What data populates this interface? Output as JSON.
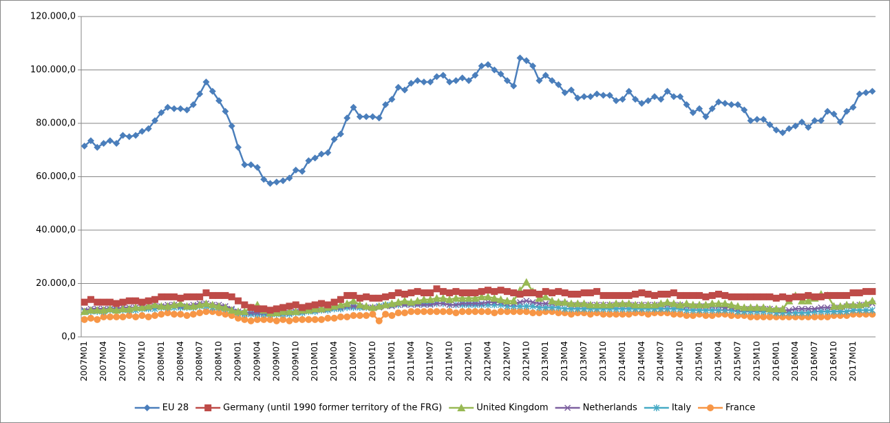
{
  "chart_data": {
    "type": "line",
    "categories": [
      "2007M01",
      null,
      null,
      "2007M04",
      null,
      null,
      "2007M07",
      null,
      null,
      "2007M10",
      null,
      null,
      "2008M01",
      null,
      null,
      "2008M04",
      null,
      null,
      "2008M07",
      null,
      null,
      "2008M10",
      null,
      null,
      "2009M01",
      null,
      null,
      "2009M04",
      null,
      null,
      "2009M07",
      null,
      null,
      "2009M10",
      null,
      null,
      "2010M01",
      null,
      null,
      "2010M04",
      null,
      null,
      "2010M07",
      null,
      null,
      "2010M10",
      null,
      null,
      "2011M01",
      null,
      null,
      "2011M04",
      null,
      null,
      "2011M07",
      null,
      null,
      "2011M10",
      null,
      null,
      "2012M01",
      null,
      null,
      "2012M04",
      null,
      null,
      "2012M07",
      null,
      null,
      "2012M10",
      null,
      null,
      "2013M01",
      null,
      null,
      "2013M04",
      null,
      null,
      "2013M07",
      null,
      null,
      "2013M10",
      null,
      null,
      "2014M01",
      null,
      null,
      "2014M04",
      null,
      null,
      "2014M07",
      null,
      null,
      "2014M10",
      null,
      null,
      "2015M01",
      null,
      null,
      "2015M04",
      null,
      null,
      "2015M07",
      null,
      null,
      "2015M10",
      null,
      null,
      "2016M01",
      null,
      null,
      "2016M04",
      null,
      null,
      "2016M07",
      null,
      null,
      "2016M10",
      null,
      null,
      "2017M01",
      null,
      null,
      null
    ],
    "ylim": [
      0,
      120000
    ],
    "yticks": [
      {
        "value": 0,
        "label": "0,0"
      },
      {
        "value": 20000,
        "label": "20.000,0"
      },
      {
        "value": 40000,
        "label": "40.000,0"
      },
      {
        "value": 60000,
        "label": "60.000,0"
      },
      {
        "value": 80000,
        "label": "80.000,0"
      },
      {
        "value": 100000,
        "label": "100.000,0"
      },
      {
        "value": 120000,
        "label": "120.000,0"
      }
    ],
    "grid": true,
    "legend": "bottom",
    "series": [
      {
        "name": "EU 28",
        "color": "#4a7ebb",
        "marker": "diamond",
        "values": [
          71500,
          73500,
          71000,
          72500,
          73500,
          72500,
          75500,
          75000,
          75500,
          77000,
          78000,
          81000,
          84000,
          86000,
          85500,
          85500,
          85000,
          87000,
          91000,
          95500,
          92000,
          88500,
          84500,
          79000,
          71000,
          64500,
          64500,
          63500,
          59000,
          57500,
          58000,
          58500,
          59500,
          62500,
          62000,
          66000,
          67000,
          68500,
          69000,
          74000,
          76000,
          82000,
          86000,
          82500,
          82500,
          82500,
          82000,
          87000,
          89000,
          93500,
          92500,
          95000,
          96000,
          95500,
          95500,
          97500,
          98000,
          95500,
          96000,
          97000,
          96000,
          98000,
          101500,
          102000,
          100000,
          98500,
          96000,
          94000,
          104500,
          103500,
          101500,
          96000,
          98000,
          96000,
          94500,
          91500,
          92500,
          89500,
          90000,
          90000,
          91000,
          90500,
          90500,
          88500,
          89000,
          92000,
          89000,
          87500,
          88500,
          90000,
          89000,
          92000,
          90000,
          90000,
          87000,
          84000,
          85500,
          82500,
          85500,
          88000,
          87500,
          87000,
          87000,
          85000,
          81000,
          81500,
          81500,
          79500,
          77500,
          76500,
          78000,
          79000,
          80500,
          78500,
          81000,
          81000,
          84500,
          83500,
          80500,
          84500,
          86000,
          91000,
          91500,
          92000
        ]
      },
      {
        "name": "Germany (until 1990 former territory of the FRG)",
        "color": "#be4b48",
        "marker": "square",
        "values": [
          13000,
          14000,
          13000,
          13000,
          13000,
          12500,
          13000,
          13500,
          13500,
          13000,
          13500,
          14000,
          15000,
          15000,
          15000,
          14500,
          15000,
          15000,
          15000,
          16500,
          15500,
          15500,
          15500,
          15000,
          13500,
          12000,
          11000,
          10500,
          10500,
          10000,
          10500,
          11000,
          11500,
          12000,
          11000,
          11500,
          12000,
          12500,
          12000,
          13000,
          14000,
          15500,
          15500,
          14500,
          15000,
          14500,
          14500,
          15000,
          15500,
          16500,
          16000,
          16500,
          17000,
          16500,
          16500,
          18000,
          17000,
          16500,
          17000,
          16500,
          16500,
          16500,
          17000,
          17500,
          17000,
          17500,
          17000,
          16500,
          16000,
          16500,
          16500,
          16000,
          17000,
          16500,
          17000,
          16500,
          16000,
          16000,
          16500,
          16500,
          17000,
          15500,
          15500,
          15500,
          15500,
          15500,
          16000,
          16500,
          16000,
          15500,
          16000,
          16000,
          16500,
          15500,
          15500,
          15500,
          15500,
          15000,
          15500,
          16000,
          15500,
          15000,
          15000,
          15000,
          15000,
          15000,
          15000,
          15000,
          14500,
          15000,
          14500,
          15000,
          15000,
          15500,
          15000,
          15000,
          15500,
          15500,
          15500,
          15500,
          16500,
          16500,
          17000,
          17000
        ]
      },
      {
        "name": "United Kingdom",
        "color": "#98b954",
        "marker": "triangle",
        "values": [
          9500,
          10000,
          10000,
          10000,
          10500,
          10000,
          10500,
          10500,
          11000,
          11000,
          11500,
          12000,
          11500,
          11500,
          12000,
          12500,
          11500,
          11500,
          12000,
          12500,
          12000,
          11500,
          11000,
          10000,
          9500,
          9500,
          11000,
          12000,
          10000,
          9000,
          9000,
          9500,
          9500,
          9500,
          10000,
          10000,
          10500,
          10500,
          11000,
          11500,
          12000,
          12500,
          13500,
          12000,
          11500,
          11000,
          11500,
          12000,
          12500,
          13000,
          13500,
          13000,
          13500,
          14000,
          14000,
          14500,
          14500,
          14000,
          14500,
          14500,
          14500,
          14500,
          15000,
          15000,
          14500,
          14000,
          13500,
          13500,
          17500,
          20500,
          17000,
          14500,
          15000,
          13500,
          13000,
          13000,
          12500,
          12500,
          12500,
          12000,
          12000,
          12000,
          12000,
          12500,
          12500,
          12500,
          12000,
          12000,
          12000,
          12000,
          12500,
          13000,
          12500,
          12000,
          12500,
          12000,
          12000,
          12000,
          12500,
          12500,
          12500,
          12000,
          11500,
          11000,
          11000,
          11000,
          11000,
          10500,
          10500,
          10500,
          13500,
          15500,
          13500,
          13500,
          14500,
          16000,
          15500,
          11500,
          11500,
          12000,
          12000,
          12000,
          12500,
          13500
        ]
      },
      {
        "name": "Netherlands",
        "color": "#7d60a0",
        "marker": "x",
        "values": [
          10000,
          10500,
          10500,
          10500,
          10500,
          10500,
          11000,
          11000,
          11000,
          11000,
          11000,
          11500,
          11500,
          12000,
          12000,
          11500,
          11500,
          12000,
          12500,
          12500,
          12000,
          12000,
          11500,
          10500,
          9500,
          9000,
          9000,
          9000,
          9000,
          9000,
          9000,
          9000,
          9000,
          9500,
          9500,
          10000,
          10000,
          10000,
          10500,
          11000,
          11000,
          11500,
          11500,
          11500,
          11000,
          11000,
          11000,
          11500,
          11500,
          12000,
          12000,
          12000,
          12000,
          12000,
          12000,
          12500,
          12500,
          12000,
          12000,
          12500,
          12500,
          12500,
          12500,
          13000,
          13000,
          13000,
          12500,
          12500,
          13000,
          13500,
          13000,
          12500,
          12500,
          12500,
          12500,
          12500,
          12000,
          12000,
          12000,
          12000,
          12000,
          12000,
          12000,
          12000,
          12000,
          12000,
          12000,
          12000,
          12000,
          12000,
          12000,
          12000,
          12000,
          12000,
          11500,
          11500,
          11500,
          11500,
          11500,
          11500,
          11000,
          11000,
          10500,
          10500,
          10500,
          10500,
          10500,
          10500,
          10000,
          10000,
          10000,
          10500,
          10500,
          10500,
          10500,
          11000,
          11000,
          11000,
          11000,
          11500,
          11500,
          12000,
          12000,
          12500
        ]
      },
      {
        "name": "Italy",
        "color": "#46aac5",
        "marker": "star",
        "values": [
          9500,
          9500,
          9500,
          9500,
          10000,
          10000,
          10000,
          10000,
          10000,
          10500,
          10500,
          10500,
          11000,
          11000,
          11000,
          11000,
          11000,
          11000,
          11500,
          11500,
          11000,
          11000,
          10500,
          10000,
          9000,
          8500,
          8500,
          8500,
          8500,
          8500,
          8500,
          8500,
          8500,
          9000,
          9000,
          9500,
          9500,
          10000,
          10000,
          10500,
          10500,
          11000,
          11000,
          11000,
          11000,
          11000,
          11500,
          12000,
          12000,
          12000,
          12500,
          12500,
          12500,
          12500,
          12500,
          12500,
          12500,
          12000,
          12000,
          12000,
          12000,
          12000,
          12000,
          12000,
          12000,
          12000,
          11500,
          11500,
          11500,
          11500,
          11500,
          11000,
          11000,
          11000,
          11000,
          10500,
          10500,
          10500,
          10500,
          10500,
          10500,
          10500,
          10500,
          10500,
          10500,
          10500,
          10500,
          10500,
          10500,
          10500,
          10500,
          10500,
          10500,
          10500,
          10000,
          10000,
          10000,
          10000,
          10000,
          10000,
          10000,
          10000,
          9500,
          9500,
          9500,
          9500,
          9500,
          9500,
          9000,
          9000,
          9000,
          9000,
          9000,
          9000,
          9500,
          9500,
          9500,
          9500,
          9500,
          9500,
          10000,
          10000,
          10000,
          10000
        ]
      },
      {
        "name": "France",
        "color": "#f79646",
        "marker": "circle",
        "values": [
          6500,
          7000,
          6500,
          7500,
          7500,
          7500,
          7500,
          8000,
          7500,
          8000,
          7500,
          8000,
          8500,
          9000,
          8500,
          8500,
          8000,
          8500,
          9000,
          9500,
          9500,
          9000,
          8500,
          8000,
          7000,
          6500,
          6000,
          6500,
          6500,
          6500,
          6000,
          6500,
          6000,
          6500,
          6500,
          6500,
          6500,
          6500,
          7000,
          7000,
          7500,
          7500,
          8000,
          8000,
          8000,
          8500,
          6000,
          8500,
          8000,
          9000,
          9000,
          9500,
          9500,
          9500,
          9500,
          9500,
          9500,
          9500,
          9000,
          9500,
          9500,
          9500,
          9500,
          9500,
          9000,
          9500,
          9500,
          9500,
          9500,
          9500,
          9000,
          9000,
          9500,
          9500,
          9000,
          9000,
          8500,
          9000,
          9000,
          8500,
          9000,
          8500,
          8500,
          8500,
          8500,
          8500,
          9000,
          9000,
          8500,
          9000,
          9000,
          9000,
          8500,
          8500,
          8000,
          8000,
          8500,
          8000,
          8000,
          8500,
          8500,
          8000,
          8000,
          8000,
          7500,
          7500,
          7500,
          7500,
          7500,
          7500,
          7500,
          7500,
          7500,
          7500,
          7500,
          7500,
          7500,
          8000,
          8000,
          8000,
          8500,
          8500,
          8500,
          8500
        ]
      }
    ]
  }
}
